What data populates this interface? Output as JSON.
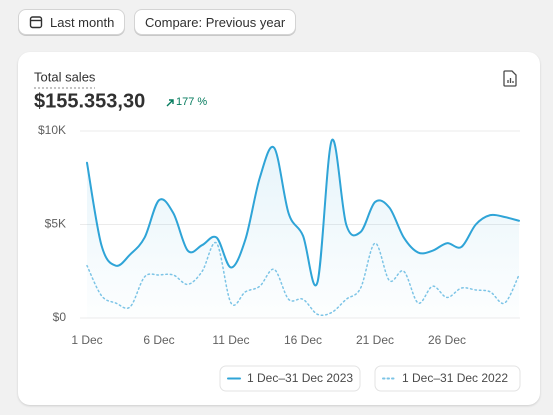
{
  "toolbar": {
    "date_range": "Last month",
    "compare": "Compare: Previous year"
  },
  "chart_data": {
    "type": "line",
    "title": "Total sales",
    "subtitle": "$155.353,30",
    "annotation": "177 %",
    "x": [
      1,
      2,
      3,
      4,
      5,
      6,
      7,
      8,
      9,
      10,
      11,
      12,
      13,
      14,
      15,
      16,
      17,
      18,
      19,
      20,
      21,
      22,
      23,
      24,
      25,
      26,
      27,
      28,
      29,
      30,
      31
    ],
    "xlim": [
      1,
      31
    ],
    "xticks": [
      {
        "value": 1,
        "label": "1 Dec"
      },
      {
        "value": 6,
        "label": "6 Dec"
      },
      {
        "value": 11,
        "label": "11 Dec"
      },
      {
        "value": 16,
        "label": "16 Dec"
      },
      {
        "value": 21,
        "label": "21 Dec"
      },
      {
        "value": 26,
        "label": "26 Dec"
      }
    ],
    "ylim": [
      0,
      10000
    ],
    "yticks": [
      {
        "value": 0,
        "label": "$0"
      },
      {
        "value": 5000,
        "label": "$5K"
      },
      {
        "value": 10000,
        "label": "$10K"
      }
    ],
    "grid": true,
    "series": [
      {
        "name": "1 Dec–31 Dec 2023",
        "color": "#2fa4d7",
        "style": "solid",
        "area": true,
        "values": [
          8300,
          3900,
          2800,
          3400,
          4300,
          6300,
          5600,
          3600,
          3900,
          4300,
          2700,
          4200,
          7500,
          9100,
          5600,
          4400,
          1900,
          9500,
          5000,
          4600,
          6200,
          5900,
          4300,
          3500,
          3600,
          4000,
          3800,
          5000,
          5500,
          5400,
          5200
        ]
      },
      {
        "name": "1 Dec–31 Dec 2022",
        "color": "#7cc4e6",
        "style": "dotted",
        "area": false,
        "values": [
          2800,
          1200,
          800,
          600,
          2200,
          2300,
          2300,
          1800,
          2500,
          4000,
          800,
          1400,
          1700,
          2600,
          1000,
          1000,
          200,
          300,
          1000,
          1600,
          4000,
          2000,
          2500,
          800,
          1700,
          1100,
          1600,
          1500,
          1400,
          800,
          2300
        ]
      }
    ]
  }
}
